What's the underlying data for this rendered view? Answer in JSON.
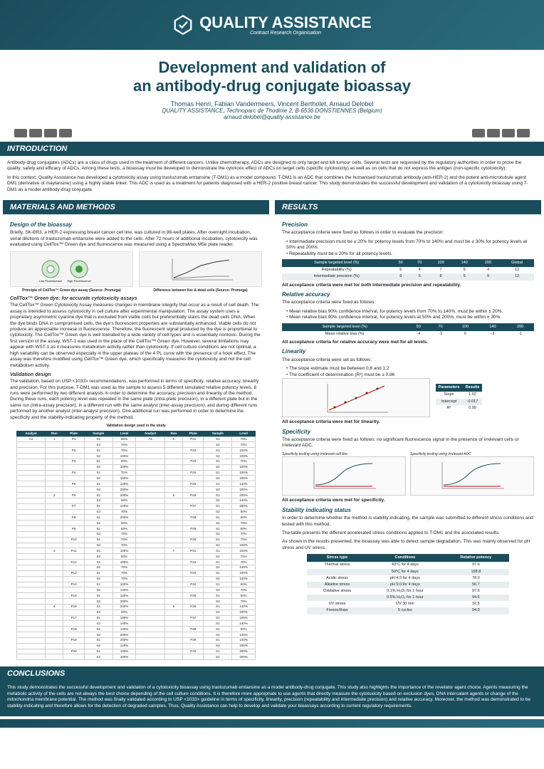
{
  "branding": {
    "logo_name": "QUALITY ASSISTANCE",
    "logo_tagline": "Contract Research Organisation"
  },
  "title": {
    "line1": "Development and validation of",
    "line2": "an antibody-drug conjugate bioassay"
  },
  "authors": "Thomas Henri, Fabian Vandermeers, Vincent Bertholet, Arnaud Delobel",
  "underlined_author": "Arnaud Delobel",
  "affiliation": "QUALITY ASSISTANCE, Technoparc de Thudinie 2, B-6536 DONSTIENNES (Belgium)",
  "email": "arnaud.delobel@quality-assistance.be",
  "sections": {
    "introduction": {
      "title": "INTRODUCTION",
      "p1": "Antibody-drug conjugates (ADCs) are a class of drugs used in the treatment of different cancers. Unlike chemotherapy, ADCs are designed to only target and kill tumour cells. Several tests are requested by the regulatory authorities in order to prove the quality, safety and efficacy of ADCs. Among these tests, a bioassay must be developed to demonstrate the cytotoxic effect of ADCs on target cells (specific cytotoxicity) as well as on cells that do not express the antigen (non-specific cytotoxicity).",
      "p2": "In this context, Quality Assistance has developed a cytotoxicity assay using trastuzumab emtansine (T-DM1) as a model compound. T-DM1 is an ADC that combines the humanised trastuzumab antibody (anti-HER-2) and the potent anti-microtubule agent DM1 (derivative of maytansine) using a highly stable linker. This ADC is used as a treatment for patients diagnosed with a HER-2 positive breast cancer. This study demonstrates the successful development and validation of a cytotoxicity bioassay using T-DM1 as a model antibody-drug conjugate."
    },
    "materials": {
      "title": "MATERIALS AND METHODS",
      "design_h": "Design of the bioassay",
      "design_p": "Briefly, SK-BR3, a HER-2 expressing breast cancer cell line, was cultured in 96-well plates. After overnight incubation, serial dilutions of trastuzumab emtansine were added to the cells. After 72 hours of additional incubation, cytotoxicity was evaluated using CellTox™ Green dye and fluorescence was measured using a SpectraMax M5e plate reader.",
      "caption1": "Principle of CellTox™ Green dye assay (Source: Promega)",
      "caption2": "Difference between live & dead cells (Source: Promega)",
      "celltox_h": "CellTox™ Green dye: for accurate cytotoxicity assays",
      "celltox_p": "The CellTox™ Green Cytotoxicity Assay measures changes in membrane integrity that occur as a result of cell death. The assay is intended to assess cytotoxicity in cell culture after experimental manipulation. The assay system uses a proprietary asymmetric cyanine dye that is excluded from viable cells but preferentially stains the dead cells DNA. When the dye binds DNA in compromised cells, the dye's fluorescent properties are substantially enhanced. Viable cells do not produce an appreciable increase in fluorescence. Therefore, the fluorescent signal produced by the dye is proportional to cytotoxicity. The CellTox™ Green dye is well tolerated by a wide variety of cell types and is essentially nontoxic. During the first version of the assay, WST-1 was used in the place of the CellTox™ Green dye. However, several limitations may appear with WST-1 as it measures metabolism activity rather than cytotoxicity. If cell culture conditions are not optimal, a high variability can be observed especially in the upper plateau of the 4 PL curve with the presence of a hook effect. The assay was therefore modified using CellTox™ Green dye, which specifically measures the cytotoxicity and not the cell metabolism activity.",
      "valid_h": "Validation design",
      "valid_p": "The validation, based on USP <1033> recommendations, was performed in terms of specificity, relative accuracy, linearity and precision. For this purpose, T-DM1 was used as the sample to assess 5 different simulated relative potency levels. 8 runs were performed by two different analysts in order to determine the accuracy, precision and linearity of the method. During these runs, each potency level was repeated in the same plate (intra-plate precision), in a different plate but in the same run (intra-assay precision), in a different run with the same analyst (inter-assay precision), and during different runs performed by another analyst (inter-analyst precision). One additional run was performed in order to determine the specificity and the stability-indicating property of the method.",
      "valid_caption": "Validation design used in the study"
    },
    "results": {
      "title": "RESULTS",
      "precision_h": "Precision",
      "precision_p": "The acceptance criteria were fixed as follows in order to evaluate the precision:",
      "precision_b1": "Intermediate precision must be ≤ 20% for potency levels from 70% to 140% and must be ≤ 30% for potency levels at 50% and 200%.",
      "precision_b2": "Repeatability must be ≤ 20% for all potency levels.",
      "precision_accept": "All acceptance criteria were met for both intermediate precision and repeatability.",
      "accuracy_h": "Relative accuracy",
      "accuracy_p": "The acceptance criteria were fixed as follows:",
      "accuracy_b1": "Mean relative bias 90% confidence interval, for potency levels from 70% to 140%, must be within ± 20%.",
      "accuracy_b2": "Mean relative bias 90% confidence interval, for potency levels at 50% and 200%, must be within ± 30%.",
      "accuracy_accept": "All acceptance criteria for relative accuracy were met for all levels.",
      "linearity_h": "Linearity",
      "linearity_p": "The acceptance criteria were set as follows:",
      "linearity_b1": "The slope estimate must be between 0.8 and 1.2",
      "linearity_b2": "The coefficient of determination (R²) must be ≥ 0.96",
      "linearity_accept": "All acceptance criteria were met for linearity.",
      "specificity_h": "Specificity",
      "specificity_p": "The acceptance criteria were fixed as follows: no significant fluorescence signal in the presence of irrelevant cells or irrelevant ADC.",
      "spec_cap1": "Specificity testing using irrelevant cell line",
      "spec_cap2": "Specificity testing using irrelevant ADC",
      "specificity_accept": "All acceptance criteria were met for specificity.",
      "stability_h": "Stability indicating status",
      "stability_p1": "In order to determine whether the method is stability indicating, the sample was submitted to different stress conditions and tested with this method.",
      "stability_p2": "The table presents the different accelerated stress conditions applied to T-DM1 and the associated results.",
      "stability_p3": "As shown in the results presented, the bioassay was able to detect sample degradation. This was mainly observed for pH stress and UV stress."
    },
    "conclusions": {
      "title": "CONCLUSIONS",
      "text": "This study demonstrates the successful development and validation of a cytotoxicity bioassay using trastuzumab emtansine as a model antibody-drug conjugate. This study also highlights the importance of the revelator agent choice. Agents measuring the metabolic activity of the cells are not always the best choice depending of the cell culture conditions. It is therefore more appropriate to use agents that directly measure the cytotoxicity based on exclusion dyes, DNA intercalant agents or change of the mitochondria membrane potential. The method was finally validated according to USP <1033> guideline in terms of specificity, linearity, precision (repeatability and intermediate precision) and relative accuracy. Moreover, the method was demonstrated to be stability-indicating and therefore allows for the detection of degraded samples. Thus, Quality Assistance can help to develop and validate your bioassays according to current regulatory requirements."
    }
  },
  "precision_table": {
    "headers": [
      "Sample targeted level (%)",
      "50",
      "70",
      "100",
      "140",
      "200",
      "Global"
    ],
    "rows": [
      [
        "Repeatability (%)",
        "5",
        "4",
        "7",
        "5",
        "4",
        "12"
      ],
      [
        "Intermediate precision (%)",
        "8",
        "5",
        "8",
        "5",
        "9",
        "13"
      ]
    ]
  },
  "accuracy_table": {
    "headers": [
      "Sample targeted level (%)",
      "50",
      "70",
      "100",
      "140",
      "200"
    ],
    "rows": [
      [
        "Mean relative bias (%)",
        "-4",
        "-1",
        "0",
        "-3",
        "-1"
      ]
    ]
  },
  "linearity_table": {
    "headers": [
      "Parameters",
      "Results"
    ],
    "rows": [
      [
        "Slope",
        "1.02"
      ],
      [
        "Intercept",
        "-0.017"
      ],
      [
        "R²",
        "0.99"
      ]
    ]
  },
  "stress_table": {
    "headers": [
      "Stress type",
      "Conditions",
      "Relative potency"
    ],
    "rows": [
      [
        "Thermal stress",
        "40°C for 4 days",
        "97.6"
      ],
      [
        "",
        "50°C for 4 days",
        "108.8"
      ],
      [
        "Acidic stress",
        "pH 4.0 for 4 days",
        "78.0"
      ],
      [
        "Alkaline stress",
        "pH 9.0 for 4 days",
        "56.7"
      ],
      [
        "Oxidative stress",
        "0.1% H₂O₂ for 1 hour",
        "97.6"
      ],
      [
        "",
        "0.5% H₂O₂ for 1 hour",
        "94.6"
      ],
      [
        "UV stress",
        "UV 30 min",
        "32.5"
      ],
      [
        "Freeze/thaw",
        "5 cycles",
        "94.9"
      ]
    ]
  },
  "validation_table": {
    "headers": [
      "Analyst",
      "Run",
      "Plate",
      "Sample",
      "Level",
      "Analyst",
      "Run",
      "Plate",
      "Sample",
      "Level"
    ],
    "analyst_left": "A1",
    "analyst_right": "A2",
    "rows_left": [
      [
        "1",
        "P1",
        "S1",
        "50%"
      ],
      [
        "",
        "",
        "S2",
        "70%"
      ],
      [
        "",
        "P2",
        "S1",
        "70%"
      ],
      [
        "",
        "",
        "S2",
        "100%"
      ],
      [
        "",
        "P3",
        "S1",
        "50%"
      ],
      [
        "",
        "",
        "S2",
        "100%"
      ],
      [
        "",
        "P4",
        "S1",
        "70%"
      ],
      [
        "",
        "",
        "S2",
        "100%"
      ],
      [
        "",
        "P5",
        "S1",
        "140%"
      ],
      [
        "",
        "",
        "S2",
        "200%"
      ],
      [
        "2",
        "P6",
        "S1",
        "200%"
      ],
      [
        "",
        "",
        "S2",
        "50%"
      ],
      [
        "",
        "P7",
        "S1",
        "140%"
      ],
      [
        "",
        "",
        "S2",
        "70%"
      ],
      [
        "",
        "P8",
        "S1",
        "200%"
      ],
      [
        "",
        "",
        "S2",
        "50%"
      ],
      [
        "",
        "P9",
        "S1",
        "50%"
      ],
      [
        "",
        "",
        "S2",
        "70%"
      ],
      [
        "",
        "P10",
        "S1",
        "70%"
      ],
      [
        "",
        "",
        "S2",
        "70%"
      ],
      [
        "3",
        "P11",
        "S1",
        "100%"
      ],
      [
        "",
        "",
        "S2",
        "50%"
      ],
      [
        "",
        "P12",
        "S1",
        "100%"
      ],
      [
        "",
        "",
        "S2",
        "70%"
      ],
      [
        "",
        "P13",
        "S1",
        "70%"
      ],
      [
        "",
        "",
        "S2",
        "70%"
      ],
      [
        "",
        "P14",
        "S1",
        "100%"
      ],
      [
        "",
        "",
        "S2",
        "140%"
      ],
      [
        "",
        "P15",
        "S1",
        "140%"
      ],
      [
        "",
        "",
        "S2",
        "200%"
      ],
      [
        "4",
        "P16",
        "S1",
        "200%"
      ],
      [
        "",
        "",
        "S2",
        "50%"
      ],
      [
        "",
        "P17",
        "S1",
        "100%"
      ],
      [
        "",
        "",
        "S2",
        "140%"
      ],
      [
        "",
        "P18",
        "S1",
        "140%"
      ],
      [
        "",
        "",
        "S2",
        "200%"
      ],
      [
        "",
        "P19",
        "S1",
        "200%"
      ],
      [
        "",
        "",
        "S2",
        "140%"
      ],
      [
        "",
        "P20",
        "S1",
        "100%"
      ],
      [
        "",
        "",
        "S2",
        "100%"
      ]
    ],
    "rows_right": [
      [
        "5",
        "P21",
        "S1",
        "70%"
      ],
      [
        "",
        "",
        "S2",
        "70%"
      ],
      [
        "",
        "P22",
        "S1",
        "100%"
      ],
      [
        "",
        "",
        "S2",
        "100%"
      ],
      [
        "",
        "P23",
        "S1",
        "70%"
      ],
      [
        "",
        "",
        "S2",
        "100%"
      ],
      [
        "",
        "P24",
        "S1",
        "100%"
      ],
      [
        "",
        "",
        "S2",
        "100%"
      ],
      [
        "",
        "P25",
        "S1",
        "140%"
      ],
      [
        "",
        "",
        "S2",
        "200%"
      ],
      [
        "6",
        "P26",
        "S1",
        "200%"
      ],
      [
        "",
        "",
        "S2",
        "140%"
      ],
      [
        "",
        "P27",
        "S1",
        "200%"
      ],
      [
        "",
        "",
        "S2",
        "50%"
      ],
      [
        "",
        "P28",
        "S1",
        "50%"
      ],
      [
        "",
        "",
        "S2",
        "70%"
      ],
      [
        "",
        "P29",
        "S1",
        "50%"
      ],
      [
        "",
        "",
        "S2",
        "70%"
      ],
      [
        "",
        "P30",
        "S1",
        "70%"
      ],
      [
        "",
        "",
        "S2",
        "100%"
      ],
      [
        "7",
        "P31",
        "S1",
        "100%"
      ],
      [
        "",
        "",
        "S2",
        "70%"
      ],
      [
        "",
        "P32",
        "S1",
        "70%"
      ],
      [
        "",
        "",
        "S2",
        "100%"
      ],
      [
        "",
        "P33",
        "S1",
        "100%"
      ],
      [
        "",
        "",
        "S2",
        "100%"
      ],
      [
        "",
        "P34",
        "S1",
        "50%"
      ],
      [
        "",
        "",
        "S2",
        "70%"
      ],
      [
        "",
        "P35",
        "S1",
        "50%"
      ],
      [
        "",
        "",
        "S2",
        "70%"
      ],
      [
        "8",
        "P36",
        "S1",
        "140%"
      ],
      [
        "",
        "",
        "S2",
        "200%"
      ],
      [
        "",
        "P37",
        "S1",
        "100%"
      ],
      [
        "",
        "",
        "S2",
        "140%"
      ],
      [
        "",
        "P38",
        "S1",
        "50%"
      ],
      [
        "",
        "",
        "S2",
        "140%"
      ],
      [
        "",
        "P39",
        "S1",
        "140%"
      ],
      [
        "",
        "",
        "S2",
        "200%"
      ],
      [
        "",
        "P40",
        "S1",
        "200%"
      ],
      [
        "",
        "",
        "S2",
        "200%"
      ]
    ]
  },
  "colors": {
    "primary": "#1a4d5c",
    "primary_light": "#2a6b7d",
    "bg": "#ffffff",
    "row_alt": "#e8eef0"
  }
}
